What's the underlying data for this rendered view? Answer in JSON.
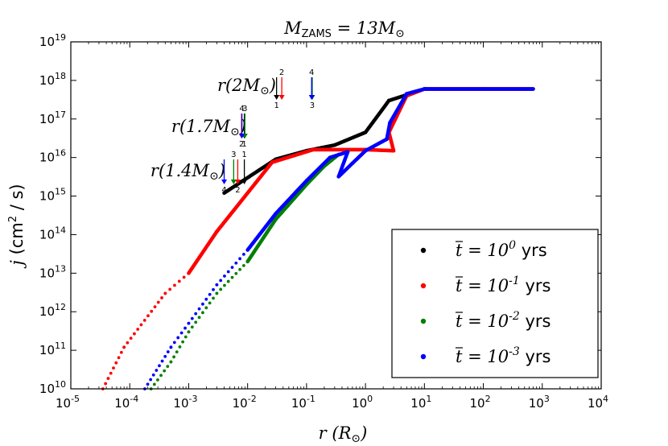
{
  "chart_data": {
    "type": "scatter",
    "title": "M_ZAMS = 13 M_⊙",
    "title_parts": {
      "var": "M",
      "sub": "ZAMS",
      "eq": " = 13",
      "var2": "M",
      "sun": "⊙"
    },
    "xlabel": "r (R_⊙)",
    "xlabel_parts": {
      "var": "r",
      "open": " (",
      "R": "R",
      "sun": "⊙",
      "close": ")"
    },
    "ylabel": "j (cm^2 / s)",
    "ylabel_parts": {
      "var": "j",
      "unit1": " (cm",
      "sup": "2",
      "unit2": " / s)"
    },
    "xscale": "log",
    "yscale": "log",
    "xlim": [
      1e-05,
      10000.0
    ],
    "ylim": [
      10000000000.0,
      1e+19
    ],
    "x_ticks": [
      {
        "value": 1e-05,
        "base": "10",
        "exp": "-5"
      },
      {
        "value": 0.0001,
        "base": "10",
        "exp": "-4"
      },
      {
        "value": 0.001,
        "base": "10",
        "exp": "-3"
      },
      {
        "value": 0.01,
        "base": "10",
        "exp": "-2"
      },
      {
        "value": 0.1,
        "base": "10",
        "exp": "-1"
      },
      {
        "value": 1.0,
        "base": "10",
        "exp": "0"
      },
      {
        "value": 10.0,
        "base": "10",
        "exp": "1"
      },
      {
        "value": 100.0,
        "base": "10",
        "exp": "2"
      },
      {
        "value": 1000.0,
        "base": "10",
        "exp": "3"
      },
      {
        "value": 10000.0,
        "base": "10",
        "exp": "4"
      }
    ],
    "y_ticks": [
      {
        "value": 10000000000.0,
        "base": "10",
        "exp": "10"
      },
      {
        "value": 100000000000.0,
        "base": "10",
        "exp": "11"
      },
      {
        "value": 1000000000000.0,
        "base": "10",
        "exp": "12"
      },
      {
        "value": 10000000000000.0,
        "base": "10",
        "exp": "13"
      },
      {
        "value": 100000000000000.0,
        "base": "10",
        "exp": "14"
      },
      {
        "value": 1000000000000000.0,
        "base": "10",
        "exp": "15"
      },
      {
        "value": 1e+16,
        "base": "10",
        "exp": "16"
      },
      {
        "value": 1e+17,
        "base": "10",
        "exp": "17"
      },
      {
        "value": 1e+18,
        "base": "10",
        "exp": "18"
      },
      {
        "value": 1e+19,
        "base": "10",
        "exp": "19"
      }
    ],
    "legend_position": "bottom-right",
    "series": [
      {
        "id": "s1",
        "name": "t̄ = 10^0 yrs",
        "t_bar": "t",
        "eq": " = 10",
        "exp": "0",
        "unit": " yrs",
        "color": "#000000",
        "points": [
          [
            0.004,
            1200000000000000.0
          ],
          [
            0.03,
            9000000000000000.0
          ],
          [
            0.1,
            1.5e+16
          ],
          [
            0.3,
            2.1e+16
          ],
          [
            1.0,
            4.5e+16
          ],
          [
            2.5,
            3e+17
          ],
          [
            4.5,
            4e+17
          ],
          [
            10,
            6e+17
          ],
          [
            100,
            6e+17
          ],
          [
            700,
            6e+17
          ]
        ]
      },
      {
        "id": "s2",
        "name": "t̄ = 10^-1 yrs",
        "t_bar": "t",
        "eq": " = 10",
        "exp": "-1",
        "unit": " yrs",
        "color": "#ff0000",
        "points": [
          [
            3.5e-05,
            10000000000.0
          ],
          [
            8e-05,
            120000000000.0
          ],
          [
            0.0004,
            3000000000000.0
          ],
          [
            0.001,
            10000000000000.0
          ],
          [
            0.003,
            120000000000000.0
          ],
          [
            0.026,
            7500000000000000.0
          ],
          [
            0.13,
            1.6e+16
          ],
          [
            1.0,
            1.6e+16
          ],
          [
            3.0,
            1.5e+16
          ],
          [
            2.5,
            4.5e+16
          ],
          [
            5,
            4e+17
          ],
          [
            10,
            6e+17
          ],
          [
            700,
            6e+17
          ]
        ]
      },
      {
        "id": "s3",
        "name": "t̄ = 10^-2 yrs",
        "t_bar": "t",
        "eq": " = 10",
        "exp": "-2",
        "unit": " yrs",
        "color": "#008000",
        "points": [
          [
            0.00023,
            10000000000.0
          ],
          [
            0.0005,
            50000000000.0
          ],
          [
            0.001,
            300000000000.0
          ],
          [
            0.003,
            3000000000000.0
          ],
          [
            0.01,
            20000000000000.0
          ],
          [
            0.03,
            250000000000000.0
          ],
          [
            0.1,
            2000000000000000.0
          ],
          [
            0.2,
            6000000000000000.0
          ],
          [
            0.35,
            1.2e+16
          ]
        ]
      },
      {
        "id": "s4",
        "name": "t̄ = 10^-3 yrs",
        "t_bar": "t",
        "eq": " = 10",
        "exp": "-3",
        "unit": " yrs",
        "color": "#0000ff",
        "points": [
          [
            0.00018,
            10000000000.0
          ],
          [
            0.0005,
            120000000000.0
          ],
          [
            0.001,
            500000000000.0
          ],
          [
            0.003,
            5000000000000.0
          ],
          [
            0.01,
            40000000000000.0
          ],
          [
            0.03,
            350000000000000.0
          ],
          [
            0.1,
            2500000000000000.0
          ],
          [
            0.25,
            1e+16
          ],
          [
            0.5,
            1.4e+16
          ],
          [
            0.35,
            3200000000000000.0
          ],
          [
            1.0,
            1.5e+16
          ],
          [
            2.3,
            3e+16
          ],
          [
            2.6,
            8e+16
          ],
          [
            5,
            4.5e+17
          ],
          [
            10,
            6e+17
          ],
          [
            700,
            6e+17
          ]
        ]
      }
    ],
    "annotations": [
      {
        "label": "r(2M_⊙)",
        "text_var": "r",
        "text_open": "(2",
        "text_M": "M",
        "text_sun": "⊙",
        "text_close": ")",
        "arrows": [
          {
            "color": "#000000",
            "x_r": 0.031,
            "number": "1",
            "number_pos": "below"
          },
          {
            "color": "#ff0000",
            "x_r": 0.038,
            "number": "2",
            "number_pos": "above"
          },
          {
            "color": "#008000",
            "x_r": 0.125,
            "number": "3",
            "number_pos": "below"
          },
          {
            "color": "#0000ff",
            "x_r": 0.122,
            "number": "4",
            "number_pos": "above"
          }
        ]
      },
      {
        "label": "r(1.7M_⊙)",
        "text_var": "r",
        "text_open": "(1.7",
        "text_M": "M",
        "text_sun": "⊙",
        "text_close": ")",
        "arrows": [
          {
            "color": "#000000",
            "x_r": 0.0088,
            "number": "1",
            "number_pos": "below"
          },
          {
            "color": "#ff0000",
            "x_r": 0.0079,
            "number": "2",
            "number_pos": "below"
          },
          {
            "color": "#008000",
            "x_r": 0.009,
            "number": "3",
            "number_pos": "above"
          },
          {
            "color": "#0000ff",
            "x_r": 0.008,
            "number": "4",
            "number_pos": "above"
          }
        ]
      },
      {
        "label": "r(1.4M_⊙)",
        "text_var": "r",
        "text_open": "(1.4",
        "text_M": "M",
        "text_sun": "⊙",
        "text_close": ")",
        "arrows": [
          {
            "color": "#000000",
            "x_r": 0.0088,
            "number": "1",
            "number_pos": "above"
          },
          {
            "color": "#ff0000",
            "x_r": 0.0068,
            "number": "2",
            "number_pos": "below"
          },
          {
            "color": "#008000",
            "x_r": 0.0058,
            "number": "3",
            "number_pos": "above"
          },
          {
            "color": "#0000ff",
            "x_r": 0.004,
            "number": "4",
            "number_pos": "below"
          }
        ]
      }
    ]
  }
}
